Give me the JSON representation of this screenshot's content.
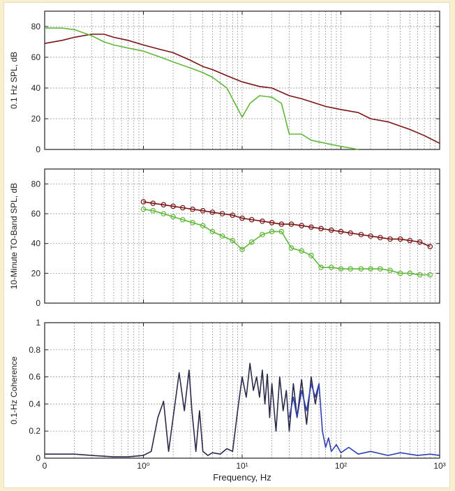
{
  "chart_data": [
    {
      "type": "line",
      "ylabel": "0.1 Hz SPL, dB",
      "xlabel": "",
      "xscale": "log",
      "xlim": [
        0.1,
        1000
      ],
      "ylim": [
        0,
        90
      ],
      "yticks": [
        0,
        20,
        40,
        60,
        80
      ],
      "xtick_labels": [],
      "grid": true,
      "colors": {
        "series_a": "#7a1414",
        "series_b": "#5fb83a"
      },
      "series": [
        {
          "color": "#7a1414",
          "x": [
            0.1,
            0.15,
            0.2,
            0.3,
            0.4,
            0.5,
            0.7,
            1.0,
            1.5,
            2,
            3,
            4,
            5,
            7,
            10,
            15,
            20,
            30,
            40,
            50,
            70,
            100,
            150,
            200,
            300,
            500,
            700,
            1000
          ],
          "y": [
            69,
            71,
            73,
            75,
            75,
            73,
            71,
            68,
            65,
            63,
            58,
            54,
            52,
            48,
            44,
            41,
            40,
            35,
            33,
            31,
            28,
            26,
            24,
            20,
            18,
            13,
            9,
            4
          ]
        },
        {
          "color": "#5fb83a",
          "x": [
            0.1,
            0.15,
            0.2,
            0.3,
            0.4,
            0.5,
            0.7,
            1.0,
            1.5,
            2,
            3,
            4,
            5,
            7,
            10,
            12,
            15,
            20,
            25,
            30,
            40,
            50,
            70,
            100,
            150
          ],
          "y": [
            79,
            79,
            78,
            74,
            70,
            68,
            66,
            64,
            60,
            57,
            53,
            50,
            47,
            40,
            21,
            30,
            35,
            34,
            30,
            10,
            10,
            6,
            4,
            2,
            0
          ]
        }
      ]
    },
    {
      "type": "line",
      "ylabel": "10-Minute TO-Band SPL, dB",
      "xlabel": "",
      "xscale": "log",
      "xlim": [
        0.1,
        1000
      ],
      "ylim": [
        0,
        90
      ],
      "yticks": [
        0,
        20,
        40,
        60,
        80
      ],
      "xtick_labels": [],
      "grid": true,
      "markers": "circle",
      "series": [
        {
          "color": "#7a1414",
          "x": [
            1.0,
            1.25,
            1.6,
            2.0,
            2.5,
            3.15,
            4.0,
            5.0,
            6.3,
            8.0,
            10,
            12.5,
            16,
            20,
            25,
            31.5,
            40,
            50,
            63,
            80,
            100,
            125,
            160,
            200,
            250,
            315,
            400,
            500,
            630,
            800
          ],
          "y": [
            68,
            67,
            66,
            65,
            64,
            63,
            62,
            61,
            60,
            59,
            57,
            56,
            55,
            54,
            53,
            53,
            52,
            51,
            50,
            49,
            48,
            47,
            46,
            45,
            44,
            43,
            43,
            42,
            41,
            38
          ]
        },
        {
          "color": "#5fb83a",
          "x": [
            1.0,
            1.25,
            1.6,
            2.0,
            2.5,
            3.15,
            4.0,
            5.0,
            6.3,
            8.0,
            10,
            12.5,
            16,
            20,
            25,
            31.5,
            40,
            50,
            63,
            80,
            100,
            125,
            160,
            200,
            250,
            315,
            400,
            500,
            630,
            800
          ],
          "y": [
            63,
            62,
            60,
            58,
            56,
            54,
            52,
            48,
            45,
            42,
            36,
            41,
            46,
            48,
            48,
            37,
            35,
            32,
            24,
            24,
            23,
            23,
            23,
            23,
            23,
            22,
            20,
            20,
            19,
            19
          ]
        }
      ]
    },
    {
      "type": "line",
      "ylabel": "0.1-Hz Coherence",
      "xlabel": "Frequency, Hz",
      "xscale": "log",
      "xlim": [
        0.1,
        1000
      ],
      "ylim": [
        0,
        1
      ],
      "yticks": [
        0,
        0.2,
        0.4,
        0.6,
        0.8,
        1
      ],
      "ytick_labels": [
        "0",
        "0.2",
        "0.4",
        "0.6",
        "0.8",
        "1"
      ],
      "xtick_labels": [
        "0",
        "10⁰",
        "10¹",
        "10²",
        "10³"
      ],
      "grid": true,
      "series": [
        {
          "color": "#2a2a4a",
          "x": [
            0.1,
            0.2,
            0.3,
            0.5,
            0.7,
            1.0,
            1.2,
            1.4,
            1.6,
            1.8,
            2.0,
            2.3,
            2.6,
            2.9,
            3.1,
            3.4,
            3.7,
            4.0,
            4.5,
            5,
            6,
            7,
            8,
            9,
            10,
            11,
            12,
            13,
            14,
            15,
            16,
            17,
            18,
            19,
            20,
            22,
            24,
            26,
            28,
            30,
            33,
            36,
            40,
            45,
            50,
            55,
            60
          ],
          "y": [
            0.03,
            0.03,
            0.02,
            0.01,
            0.01,
            0.02,
            0.05,
            0.3,
            0.42,
            0.05,
            0.3,
            0.63,
            0.35,
            0.65,
            0.35,
            0.05,
            0.35,
            0.05,
            0.02,
            0.04,
            0.03,
            0.07,
            0.05,
            0.35,
            0.6,
            0.45,
            0.7,
            0.5,
            0.6,
            0.45,
            0.65,
            0.4,
            0.62,
            0.3,
            0.55,
            0.2,
            0.6,
            0.35,
            0.5,
            0.2,
            0.55,
            0.3,
            0.58,
            0.25,
            0.6,
            0.4,
            0.55
          ]
        },
        {
          "color": "#2f3fb0",
          "x": [
            30,
            33,
            36,
            40,
            45,
            50,
            55,
            60,
            65,
            70,
            75,
            80,
            90,
            100,
            120,
            150,
            200,
            300,
            400,
            600,
            800,
            1000
          ],
          "y": [
            0.3,
            0.45,
            0.3,
            0.5,
            0.35,
            0.55,
            0.45,
            0.55,
            0.2,
            0.08,
            0.15,
            0.05,
            0.1,
            0.04,
            0.08,
            0.03,
            0.05,
            0.02,
            0.04,
            0.02,
            0.03,
            0.02
          ]
        }
      ]
    }
  ]
}
